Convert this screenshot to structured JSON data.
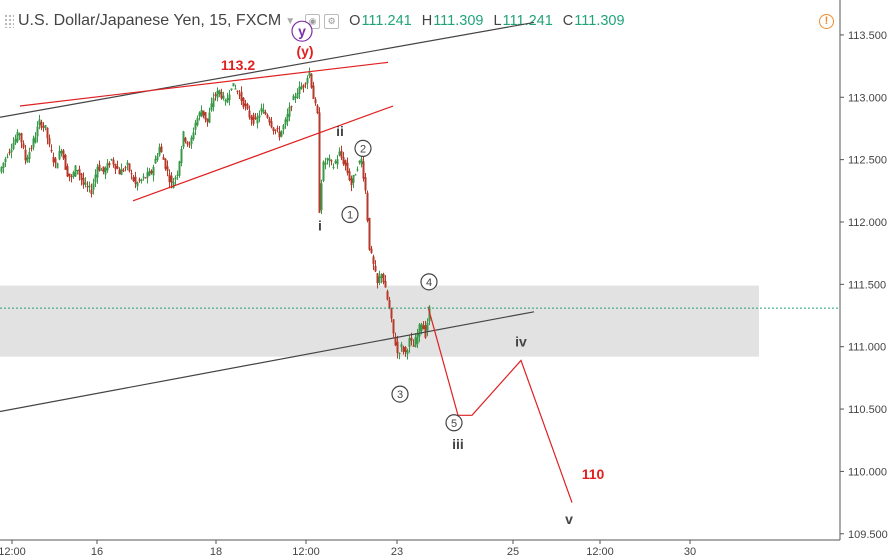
{
  "header": {
    "symbol": "U.S. Dollar/Japanese Yen, 15, FXCM",
    "ohlc": [
      {
        "k": "O",
        "v": "111.241"
      },
      {
        "k": "H",
        "v": "111.309"
      },
      {
        "k": "L",
        "v": "111.241"
      },
      {
        "k": "C",
        "v": "111.309"
      }
    ],
    "icons": [
      "drag-handle-icon",
      "dropdown-icon",
      "settings-icon",
      "alert-icon"
    ]
  },
  "colors": {
    "up": "#3a9a4a",
    "down": "#b53a2a",
    "red": "#e02020",
    "purple": "#7b2fa6",
    "black_line": "#444444",
    "zone": "#e2e2e2",
    "last_price": "#21a37a"
  },
  "chart_data": {
    "type": "candlestick",
    "symbol": "USDJPY",
    "timeframe": "15",
    "ylim": [
      109.45,
      113.78
    ],
    "y_ticks": [
      "113.500",
      "113.000",
      "112.500",
      "112.000",
      "111.500",
      "111.000",
      "110.500",
      "110.000",
      "109.500"
    ],
    "x_ticks": [
      "12:00",
      "16",
      "18",
      "12:00",
      "23",
      "25",
      "12:00",
      "30"
    ],
    "last_price": 111.309,
    "zone": [
      110.92,
      111.49
    ],
    "price_path": [
      [
        0,
        112.4
      ],
      [
        8,
        112.55
      ],
      [
        15,
        112.65
      ],
      [
        20,
        112.72
      ],
      [
        26,
        112.5
      ],
      [
        32,
        112.6
      ],
      [
        40,
        112.8
      ],
      [
        46,
        112.75
      ],
      [
        50,
        112.6
      ],
      [
        56,
        112.45
      ],
      [
        62,
        112.6
      ],
      [
        67,
        112.4
      ],
      [
        72,
        112.35
      ],
      [
        77,
        112.45
      ],
      [
        84,
        112.3
      ],
      [
        92,
        112.25
      ],
      [
        98,
        112.45
      ],
      [
        104,
        112.4
      ],
      [
        112,
        112.5
      ],
      [
        120,
        112.4
      ],
      [
        128,
        112.45
      ],
      [
        136,
        112.3
      ],
      [
        144,
        112.35
      ],
      [
        152,
        112.4
      ],
      [
        160,
        112.6
      ],
      [
        166,
        112.45
      ],
      [
        172,
        112.3
      ],
      [
        178,
        112.4
      ],
      [
        184,
        112.7
      ],
      [
        190,
        112.6
      ],
      [
        196,
        112.8
      ],
      [
        202,
        112.9
      ],
      [
        208,
        112.8
      ],
      [
        214,
        113.0
      ],
      [
        220,
        113.05
      ],
      [
        226,
        112.95
      ],
      [
        232,
        113.1
      ],
      [
        238,
        113.05
      ],
      [
        244,
        112.95
      ],
      [
        250,
        112.85
      ],
      [
        256,
        112.8
      ],
      [
        262,
        112.9
      ],
      [
        268,
        112.85
      ],
      [
        274,
        112.75
      ],
      [
        280,
        112.7
      ],
      [
        286,
        112.8
      ],
      [
        292,
        112.95
      ],
      [
        298,
        113.05
      ],
      [
        304,
        113.1
      ],
      [
        310,
        113.2
      ],
      [
        314,
        113.0
      ],
      [
        318,
        112.85
      ],
      [
        320,
        112.1
      ],
      [
        323,
        112.45
      ],
      [
        328,
        112.5
      ],
      [
        334,
        112.45
      ],
      [
        340,
        112.55
      ],
      [
        346,
        112.45
      ],
      [
        352,
        112.3
      ],
      [
        358,
        112.45
      ],
      [
        362,
        112.5
      ],
      [
        366,
        112.25
      ],
      [
        370,
        111.8
      ],
      [
        374,
        111.65
      ],
      [
        378,
        111.5
      ],
      [
        382,
        111.6
      ],
      [
        386,
        111.45
      ],
      [
        390,
        111.3
      ],
      [
        394,
        111.1
      ],
      [
        398,
        110.95
      ],
      [
        402,
        111.0
      ],
      [
        406,
        110.95
      ],
      [
        410,
        111.05
      ],
      [
        414,
        111.0
      ],
      [
        418,
        111.1
      ],
      [
        422,
        111.2
      ],
      [
        426,
        111.1
      ],
      [
        430,
        111.3
      ]
    ],
    "lines": [
      {
        "name": "black-upper-channel",
        "color": "black",
        "pts": [
          [
            0,
            112.84
          ],
          [
            534,
            113.6
          ]
        ]
      },
      {
        "name": "black-lower-channel",
        "color": "black",
        "pts": [
          [
            0,
            110.48
          ],
          [
            534,
            111.28
          ]
        ]
      },
      {
        "name": "red-upper-trendline",
        "color": "red",
        "pts": [
          [
            20,
            112.93
          ],
          [
            388,
            113.28
          ]
        ]
      },
      {
        "name": "red-lower-trendline",
        "color": "red",
        "pts": [
          [
            133,
            112.17
          ],
          [
            393,
            112.93
          ]
        ]
      },
      {
        "name": "red-projection",
        "color": "red",
        "pts": [
          [
            428,
            111.32
          ],
          [
            458,
            110.45
          ],
          [
            472,
            110.45
          ],
          [
            521,
            110.89
          ],
          [
            572,
            109.75
          ]
        ]
      }
    ],
    "labels": [
      {
        "text": "113.2",
        "x": 238,
        "y": 113.26,
        "color": "red",
        "style": "bold"
      },
      {
        "text": "(y)",
        "x": 305,
        "y": 113.37,
        "color": "red",
        "style": "bold"
      },
      {
        "text": "y",
        "x": 302,
        "y": 113.53,
        "color": "purple",
        "style": "circle"
      },
      {
        "text": "i",
        "x": 320,
        "y": 111.97,
        "color": "black",
        "style": "bold"
      },
      {
        "text": "ii",
        "x": 340,
        "y": 112.73,
        "color": "black",
        "style": "bold"
      },
      {
        "text": "1",
        "x": 350,
        "y": 112.06,
        "color": "black",
        "style": "circle"
      },
      {
        "text": "2",
        "x": 363,
        "y": 112.59,
        "color": "black",
        "style": "circle"
      },
      {
        "text": "3",
        "x": 400,
        "y": 110.62,
        "color": "black",
        "style": "circle"
      },
      {
        "text": "4",
        "x": 429,
        "y": 111.52,
        "color": "black",
        "style": "circle"
      },
      {
        "text": "5",
        "x": 454,
        "y": 110.39,
        "color": "black",
        "style": "circle"
      },
      {
        "text": "iii",
        "x": 458,
        "y": 110.22,
        "color": "black",
        "style": "bold"
      },
      {
        "text": "iv",
        "x": 521,
        "y": 111.04,
        "color": "black",
        "style": "bold"
      },
      {
        "text": "110",
        "x": 593,
        "y": 109.98,
        "color": "red",
        "style": "bold"
      },
      {
        "text": "v",
        "x": 569,
        "y": 109.62,
        "color": "black",
        "style": "bold"
      }
    ]
  }
}
